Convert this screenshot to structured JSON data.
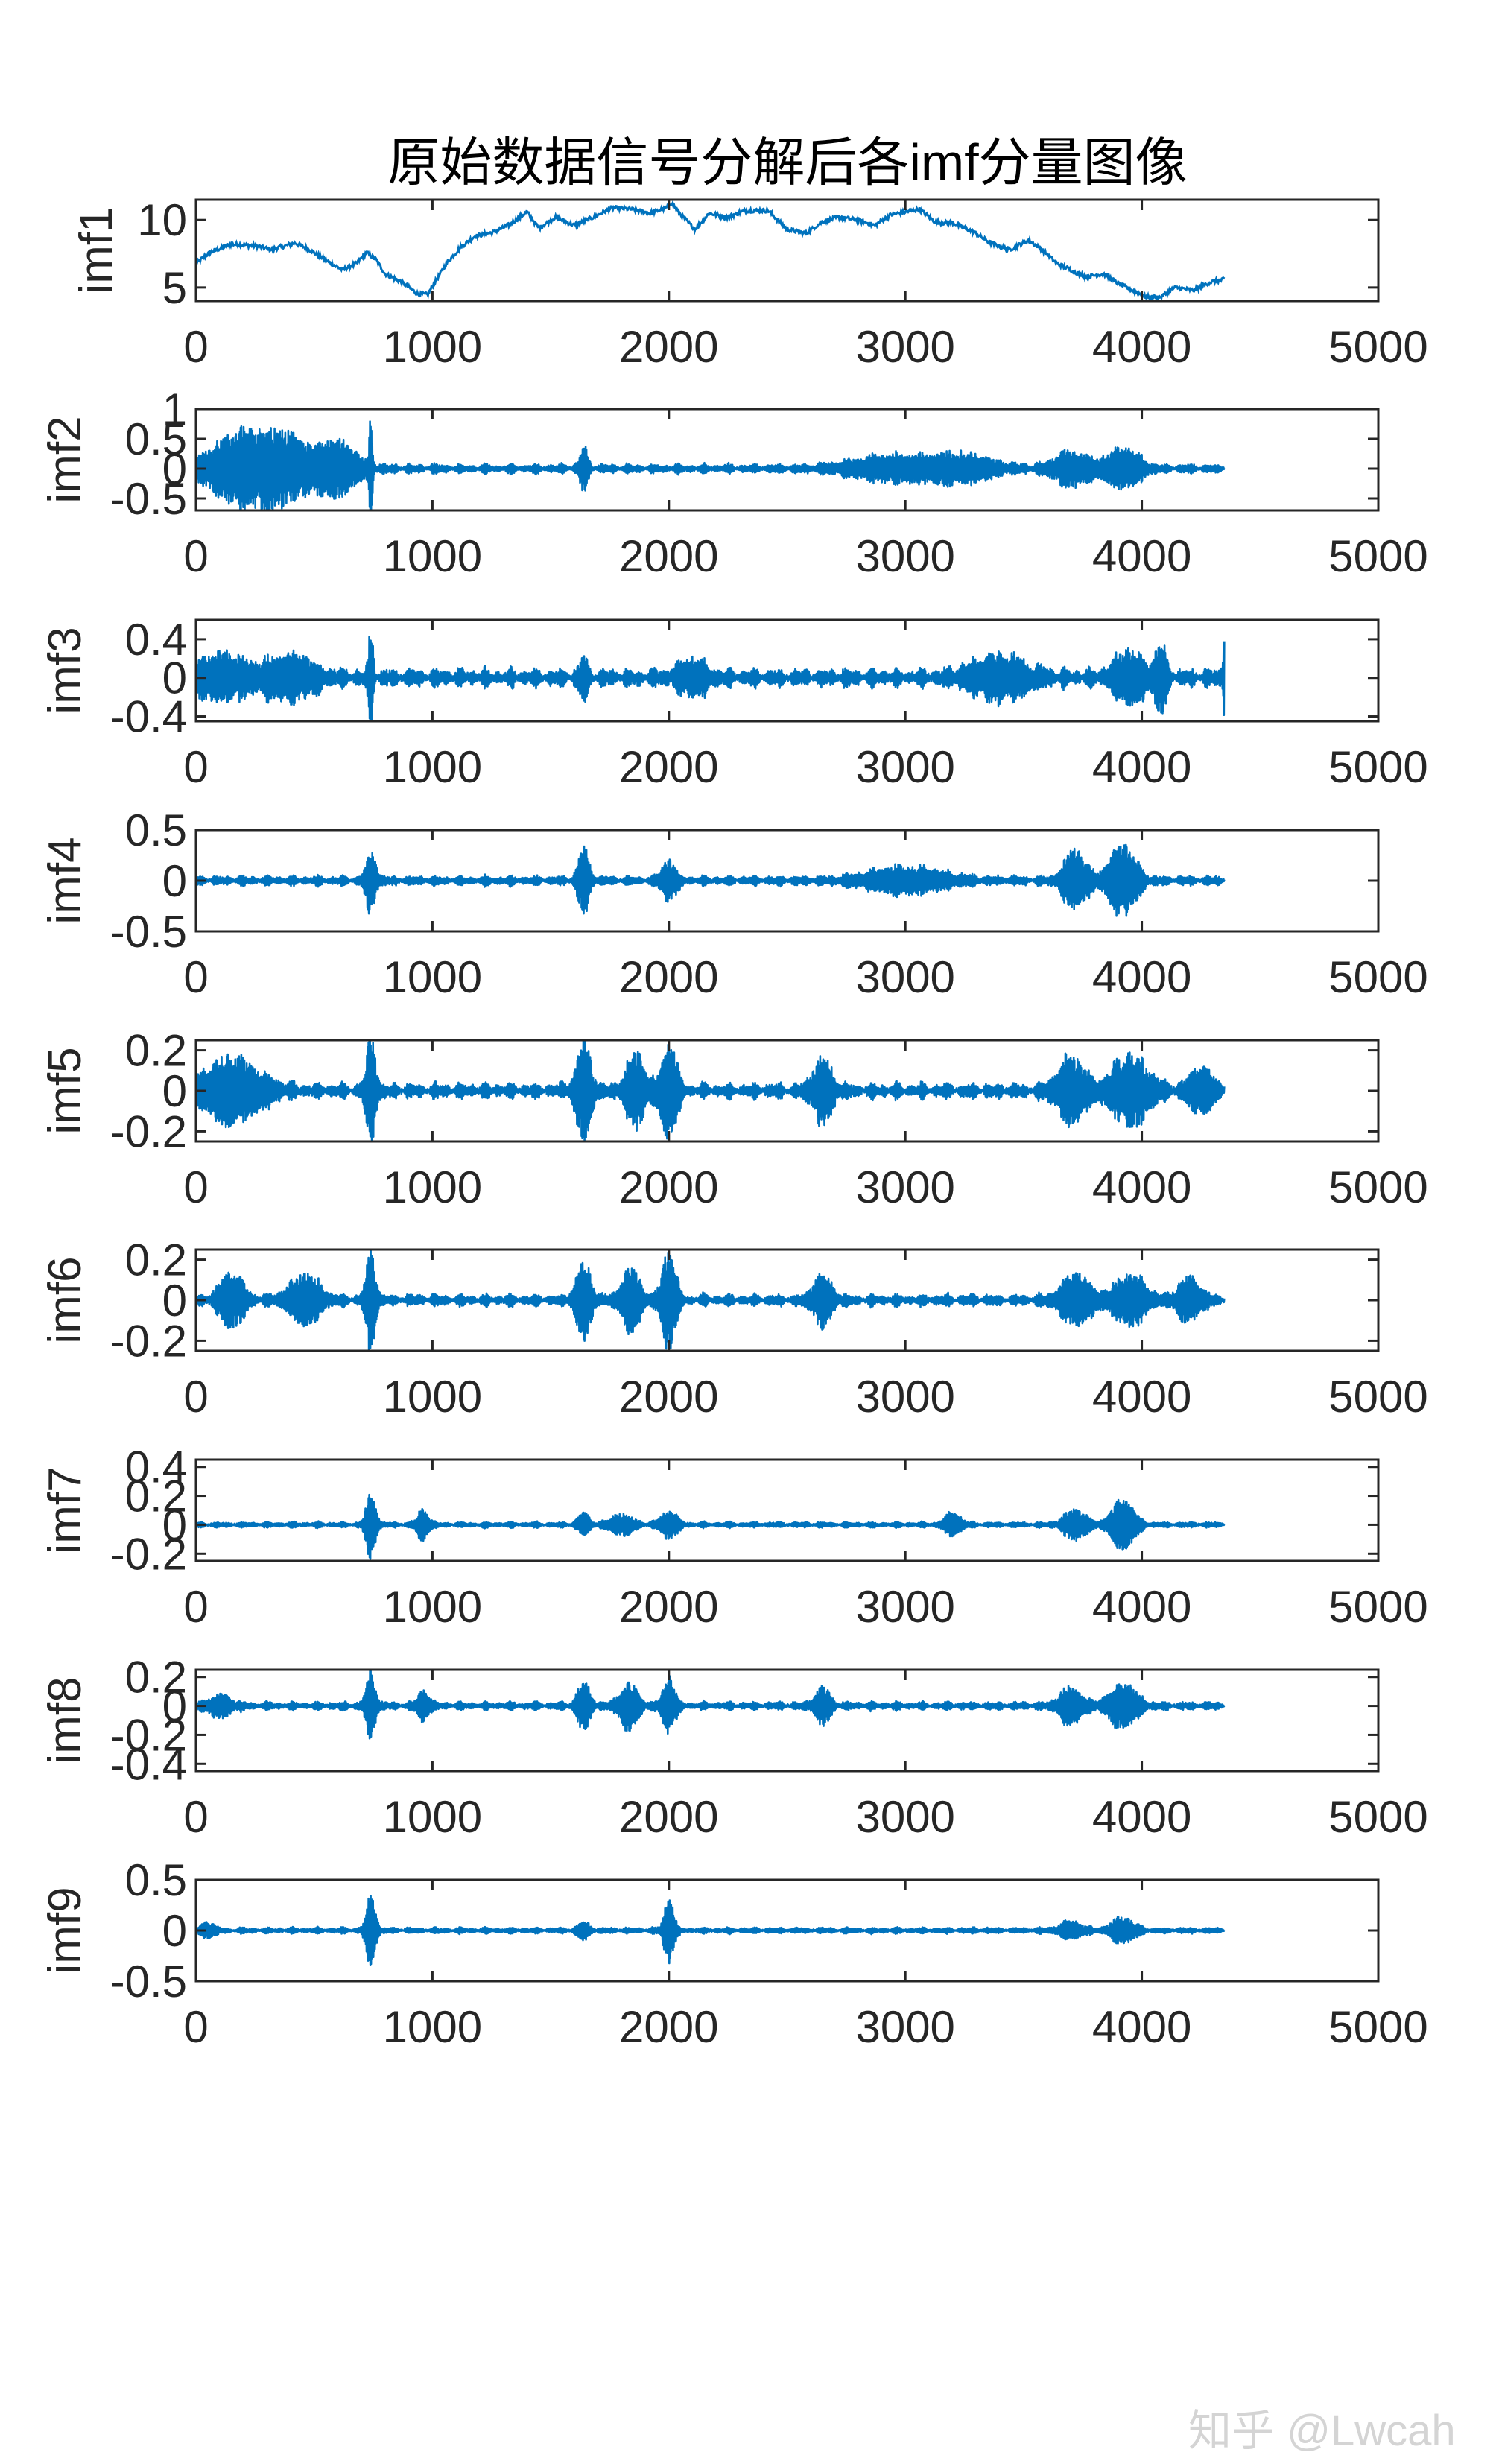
{
  "watermark": "知乎 @Lwcah",
  "chart_data": {
    "type": "line",
    "title": "原始数据信号分解后各imf分量图像",
    "line_color": "#0072BD",
    "x_range": [
      0,
      5000
    ],
    "x_ticks": [
      0,
      1000,
      2000,
      3000,
      4000,
      5000
    ],
    "x_tick_labels": [
      "0",
      "1000",
      "2000",
      "3000",
      "4000",
      "5000"
    ],
    "signal_length": 4350,
    "panels": [
      {
        "ylabel": "imf1",
        "ylim": [
          4,
          11.5
        ],
        "y_ticks": [
          5,
          10
        ],
        "y_tick_labels": [
          "5",
          "10"
        ],
        "trend_points": [
          [
            0,
            6.8
          ],
          [
            60,
            7.6
          ],
          [
            150,
            8.2
          ],
          [
            250,
            8.1
          ],
          [
            320,
            7.8
          ],
          [
            420,
            8.3
          ],
          [
            480,
            7.8
          ],
          [
            560,
            6.9
          ],
          [
            620,
            6.3
          ],
          [
            680,
            6.8
          ],
          [
            720,
            7.6
          ],
          [
            760,
            7.1
          ],
          [
            800,
            6.0
          ],
          [
            870,
            5.4
          ],
          [
            940,
            4.5
          ],
          [
            980,
            4.5
          ],
          [
            1060,
            6.8
          ],
          [
            1120,
            8.0
          ],
          [
            1180,
            8.8
          ],
          [
            1260,
            9.1
          ],
          [
            1330,
            9.7
          ],
          [
            1400,
            10.6
          ],
          [
            1450,
            9.4
          ],
          [
            1520,
            10.2
          ],
          [
            1600,
            9.6
          ],
          [
            1680,
            10.2
          ],
          [
            1760,
            10.9
          ],
          [
            1840,
            10.8
          ],
          [
            1920,
            10.5
          ],
          [
            1990,
            10.9
          ],
          [
            2010,
            11.3
          ],
          [
            2050,
            10.4
          ],
          [
            2110,
            9.3
          ],
          [
            2170,
            10.5
          ],
          [
            2250,
            10.2
          ],
          [
            2320,
            10.7
          ],
          [
            2420,
            10.7
          ],
          [
            2500,
            9.3
          ],
          [
            2580,
            9.0
          ],
          [
            2650,
            9.9
          ],
          [
            2720,
            10.2
          ],
          [
            2800,
            10.0
          ],
          [
            2870,
            9.6
          ],
          [
            2940,
            10.4
          ],
          [
            3000,
            10.6
          ],
          [
            3060,
            10.8
          ],
          [
            3130,
            9.8
          ],
          [
            3200,
            9.8
          ],
          [
            3290,
            9.1
          ],
          [
            3360,
            8.3
          ],
          [
            3440,
            7.8
          ],
          [
            3520,
            8.5
          ],
          [
            3580,
            7.8
          ],
          [
            3640,
            6.8
          ],
          [
            3700,
            6.3
          ],
          [
            3760,
            5.8
          ],
          [
            3840,
            6.0
          ],
          [
            3900,
            5.3
          ],
          [
            3960,
            4.8
          ],
          [
            4020,
            4.3
          ],
          [
            4080,
            4.3
          ],
          [
            4140,
            5.0
          ],
          [
            4220,
            4.8
          ],
          [
            4290,
            5.4
          ],
          [
            4350,
            5.6
          ]
        ],
        "noise": 0.15
      },
      {
        "ylabel": "imf2",
        "ylim": [
          -0.7,
          1.0
        ],
        "y_ticks": [
          -0.5,
          0,
          0.5,
          1
        ],
        "y_tick_labels": [
          "-0.5",
          "0",
          "0.5",
          "1"
        ],
        "amplitude_base": 0.08,
        "bursts": [
          [
            180,
            160,
            0.55
          ],
          [
            380,
            140,
            0.48
          ],
          [
            600,
            100,
            0.42
          ],
          [
            740,
            8,
            0.95
          ],
          [
            1640,
            20,
            0.35
          ],
          [
            2950,
            220,
            0.2
          ],
          [
            3250,
            150,
            0.2
          ],
          [
            3700,
            90,
            0.28
          ],
          [
            3920,
            90,
            0.32
          ]
        ]
      },
      {
        "ylabel": "imf3",
        "ylim": [
          -0.45,
          0.6
        ],
        "y_ticks": [
          -0.4,
          0,
          0.4
        ],
        "y_tick_labels": [
          "-0.4",
          "0",
          "0.4"
        ],
        "amplitude_base": 0.1,
        "bursts": [
          [
            100,
            150,
            0.2
          ],
          [
            400,
            120,
            0.2
          ],
          [
            740,
            12,
            0.5
          ],
          [
            1640,
            20,
            0.2
          ],
          [
            2100,
            80,
            0.15
          ],
          [
            3400,
            150,
            0.2
          ],
          [
            3950,
            80,
            0.25
          ],
          [
            4080,
            30,
            0.3
          ],
          [
            4350,
            10,
            0.4
          ]
        ]
      },
      {
        "ylabel": "imf4",
        "ylim": [
          -0.5,
          0.5
        ],
        "y_ticks": [
          -0.5,
          0,
          0.5
        ],
        "y_tick_labels": [
          "-0.5",
          "0",
          "0.5"
        ],
        "amplitude_base": 0.05,
        "bursts": [
          [
            740,
            25,
            0.32
          ],
          [
            1640,
            30,
            0.3
          ],
          [
            2000,
            35,
            0.2
          ],
          [
            3000,
            200,
            0.12
          ],
          [
            3720,
            60,
            0.3
          ],
          [
            3920,
            70,
            0.35
          ]
        ]
      },
      {
        "ylabel": "imf5",
        "ylim": [
          -0.25,
          0.25
        ],
        "y_ticks": [
          -0.2,
          0,
          0.2
        ],
        "y_tick_labels": [
          "-0.2",
          "0",
          "0.2"
        ],
        "amplitude_base": 0.04,
        "bursts": [
          [
            150,
            150,
            0.15
          ],
          [
            740,
            25,
            0.25
          ],
          [
            1640,
            40,
            0.23
          ],
          [
            1860,
            50,
            0.18
          ],
          [
            2000,
            40,
            0.23
          ],
          [
            2650,
            50,
            0.16
          ],
          [
            3700,
            70,
            0.16
          ],
          [
            3950,
            100,
            0.16
          ],
          [
            4250,
            60,
            0.1
          ]
        ]
      },
      {
        "ylabel": "imf6",
        "ylim": [
          -0.25,
          0.25
        ],
        "y_ticks": [
          -0.2,
          0,
          0.2
        ],
        "y_tick_labels": [
          "-0.2",
          "0",
          "0.2"
        ],
        "amplitude_base": 0.03,
        "bursts": [
          [
            150,
            60,
            0.13
          ],
          [
            460,
            80,
            0.12
          ],
          [
            740,
            25,
            0.25
          ],
          [
            1640,
            40,
            0.18
          ],
          [
            1840,
            50,
            0.15
          ],
          [
            2000,
            35,
            0.25
          ],
          [
            2650,
            50,
            0.12
          ],
          [
            3720,
            80,
            0.12
          ],
          [
            3950,
            80,
            0.12
          ],
          [
            4200,
            60,
            0.1
          ]
        ]
      },
      {
        "ylabel": "imf7",
        "ylim": [
          -0.25,
          0.45
        ],
        "y_ticks": [
          -0.2,
          0,
          0.2,
          0.4
        ],
        "y_tick_labels": [
          "-0.2",
          "0",
          "0.2",
          "0.4"
        ],
        "amplitude_base": 0.02,
        "bursts": [
          [
            740,
            25,
            0.23
          ],
          [
            960,
            30,
            0.1
          ],
          [
            1640,
            30,
            0.07
          ],
          [
            1800,
            60,
            0.07
          ],
          [
            2000,
            40,
            0.1
          ],
          [
            3200,
            40,
            0.08
          ],
          [
            3720,
            60,
            0.1
          ],
          [
            3920,
            60,
            0.17
          ]
        ]
      },
      {
        "ylabel": "imf8",
        "ylim": [
          -0.45,
          0.25
        ],
        "y_ticks": [
          -0.4,
          -0.2,
          0,
          0.2
        ],
        "y_tick_labels": [
          "-0.4",
          "-0.2",
          "0",
          "0.2"
        ],
        "amplitude_base": 0.03,
        "bursts": [
          [
            100,
            60,
            0.07
          ],
          [
            740,
            25,
            0.22
          ],
          [
            960,
            30,
            0.1
          ],
          [
            1640,
            35,
            0.15
          ],
          [
            1830,
            50,
            0.15
          ],
          [
            2000,
            30,
            0.2
          ],
          [
            2650,
            40,
            0.12
          ],
          [
            3700,
            60,
            0.12
          ],
          [
            3920,
            70,
            0.15
          ]
        ]
      },
      {
        "ylabel": "imf9",
        "ylim": [
          -0.5,
          0.5
        ],
        "y_ticks": [
          -0.5,
          0,
          0.5
        ],
        "y_tick_labels": [
          "-0.5",
          "0",
          "0.5"
        ],
        "amplitude_base": 0.03,
        "bursts": [
          [
            50,
            30,
            0.08
          ],
          [
            740,
            25,
            0.35
          ],
          [
            1640,
            30,
            0.08
          ],
          [
            2000,
            25,
            0.35
          ],
          [
            3700,
            60,
            0.08
          ],
          [
            3920,
            60,
            0.12
          ]
        ]
      }
    ]
  }
}
